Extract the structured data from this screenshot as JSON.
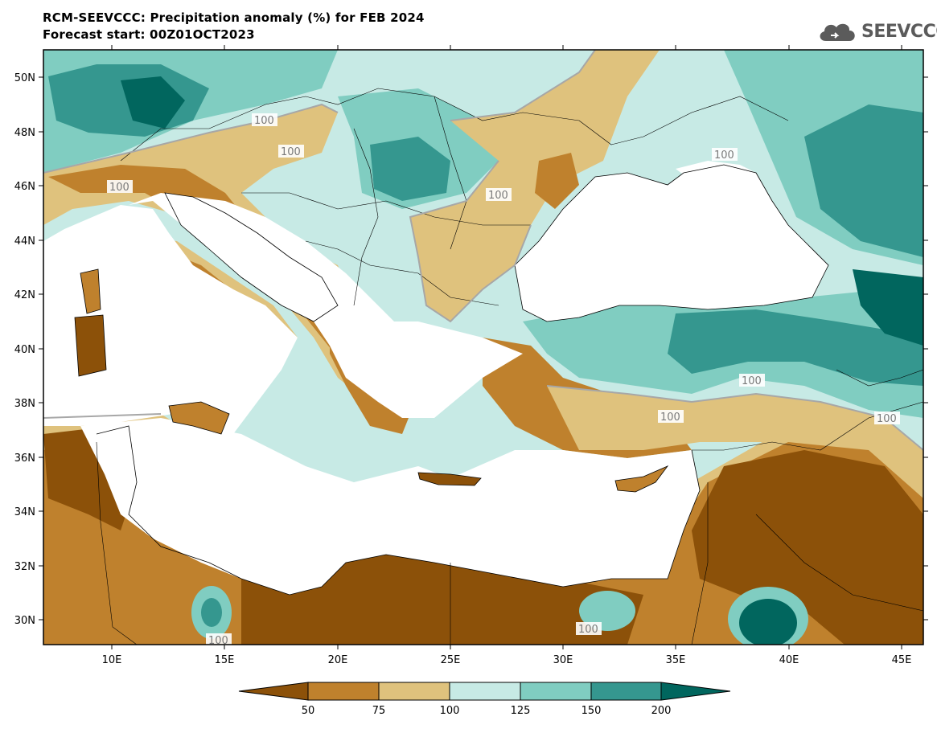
{
  "header": {
    "title": "RCM-SEEVCCC: Precipitation anomaly (%) for FEB 2024",
    "subtitle": "Forecast start: 00Z01OCT2023"
  },
  "logo": {
    "text": "SEEVCCC",
    "icon": "cloud-icon"
  },
  "map": {
    "lat_labels": [
      "50N",
      "48N",
      "46N",
      "44N",
      "42N",
      "40N",
      "38N",
      "36N",
      "34N",
      "32N",
      "30N"
    ],
    "lon_labels": [
      "10E",
      "15E",
      "20E",
      "25E",
      "30E",
      "35E",
      "40E",
      "45E"
    ],
    "contour_label": "100"
  },
  "colorbar": {
    "colors": [
      "#8c5109",
      "#bf812d",
      "#dfc27d",
      "#c7eae5",
      "#80cdc1",
      "#35978f",
      "#01665e"
    ],
    "tick_labels": [
      "50",
      "75",
      "100",
      "125",
      "150",
      "200"
    ]
  }
}
